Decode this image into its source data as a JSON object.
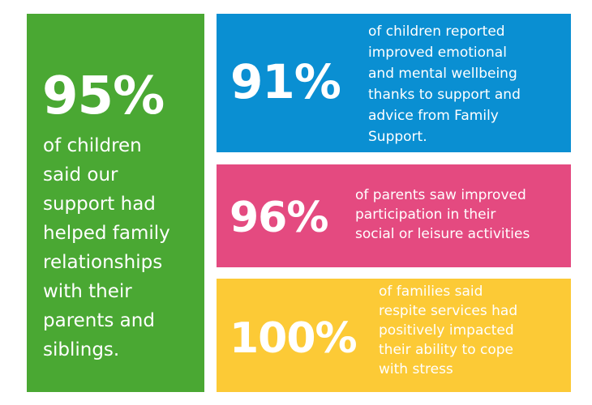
{
  "stats": [
    {
      "percent": "95%",
      "text": "of children\nsaid our\nsupport had\nhelped family\nrelationships\nwith their\nparents and\nsiblings.",
      "color": "#4aa833"
    },
    {
      "percent": "91%",
      "text": "of children reported\nimproved emotional\nand mental wellbeing\nthanks to support and\nadvice from Family\nSupport.",
      "color": "#0a8fd2"
    },
    {
      "percent": "96%",
      "text": "of parents saw improved\nparticipation in their\nsocial or leisure activities",
      "color": "#e44a80"
    },
    {
      "percent": "100%",
      "text": "of families said\nrespite services had\npositively impacted\ntheir ability to cope\nwith stress",
      "color": "#fcca36"
    }
  ]
}
